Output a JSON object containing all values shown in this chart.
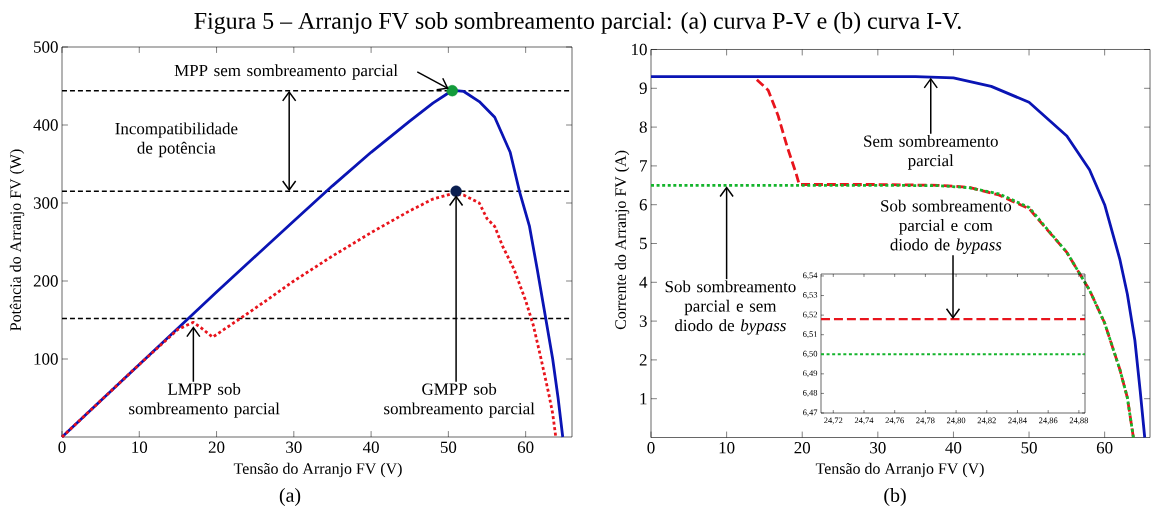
{
  "chart_data": [
    {
      "type": "line",
      "title": "Figura 5 – Arranjo FV sob sombreamento parcial: (a) curva P-V e (b) curva I-V.",
      "xlabel": "Tensão do Arranjo FV (V)",
      "ylabel": "Potência do Arranjo FV (W)",
      "xlim": [
        0,
        66
      ],
      "ylim": [
        0,
        500
      ],
      "xticks": [
        0,
        10,
        20,
        30,
        40,
        50,
        60
      ],
      "yticks": [
        100,
        200,
        300,
        400,
        500
      ],
      "series": [
        {
          "color": "#0a14b4",
          "line_style": "solid",
          "x": [
            0,
            10,
            20,
            30,
            35,
            40,
            45,
            48,
            50,
            51,
            52,
            54,
            56,
            58,
            59.2,
            60.5,
            61.5,
            62.6,
            63.5,
            64.2,
            64.8
          ],
          "values": [
            0,
            93,
            186,
            277,
            322,
            365,
            405,
            428,
            441,
            444,
            443,
            430,
            410,
            365,
            315,
            270,
            215,
            152,
            100,
            50,
            0
          ]
        },
        {
          "color": "#e8141c",
          "line_style": "dotted",
          "x": [
            0,
            10,
            15,
            17,
            18,
            19.5,
            25,
            30,
            35,
            40,
            45,
            48,
            50.5,
            52,
            54,
            55,
            56,
            57,
            58.5,
            60,
            61,
            62,
            63,
            63.5,
            63.9
          ],
          "values": [
            0,
            93,
            138,
            147,
            140,
            128,
            165,
            200,
            232,
            262,
            290,
            305,
            312,
            310,
            300,
            280,
            270,
            245,
            215,
            175,
            143,
            100,
            55,
            30,
            0
          ]
        },
        {
          "type": "scatter",
          "color": "#139b3b",
          "marker": "circle",
          "x": [
            50.5
          ],
          "values": [
            444
          ]
        },
        {
          "type": "scatter",
          "color": "#0a1e50",
          "marker": "circle",
          "x": [
            51
          ],
          "values": [
            315
          ]
        }
      ],
      "ref_lines": [
        {
          "axis": "y",
          "value": 444,
          "color": "#000000",
          "line_style": "dashed"
        },
        {
          "axis": "y",
          "value": 315,
          "color": "#000000",
          "line_style": "dashed"
        },
        {
          "axis": "y",
          "value": 152,
          "color": "#000000",
          "line_style": "dashed"
        }
      ],
      "annotations": [
        {
          "text": "MPP sem sombreamento parcial",
          "x": 50.5,
          "y": 444
        },
        "Incompatibilidade de potência",
        {
          "text": "LMPP sob sombreamento parcial",
          "x": 17,
          "y": 147
        },
        {
          "text": "GMPP sob sombreamento parcial",
          "x": 51,
          "y": 315
        },
        "(a)"
      ]
    },
    {
      "type": "line",
      "xlabel": "Tensão do Arranjo FV (V)",
      "ylabel": "Corrente do Arranjo FV (A)",
      "xlim": [
        0,
        66
      ],
      "ylim": [
        0,
        10
      ],
      "xticks": [
        0,
        10,
        20,
        30,
        40,
        50,
        60
      ],
      "yticks": [
        1,
        2,
        3,
        4,
        5,
        6,
        7,
        8,
        9,
        10
      ],
      "series": [
        {
          "color": "#e8141c",
          "line_style": "dashed",
          "x": [
            14,
            15.5,
            16.8,
            18,
            19.2,
            19.6,
            30,
            38,
            42,
            46,
            50,
            55,
            58,
            60,
            62,
            63,
            63.8
          ],
          "values": [
            9.22,
            8.95,
            8.3,
            7.5,
            6.8,
            6.52,
            6.52,
            6.5,
            6.45,
            6.25,
            5.9,
            4.77,
            3.8,
            2.95,
            1.76,
            1.03,
            0
          ]
        },
        {
          "color": "#14b42c",
          "line_style": "dotted",
          "x": [
            0,
            30,
            38,
            42,
            46,
            50,
            55,
            58,
            60,
            62,
            63,
            63.8
          ],
          "values": [
            6.5,
            6.5,
            6.49,
            6.44,
            6.28,
            5.93,
            4.77,
            3.8,
            2.95,
            1.76,
            1.03,
            0
          ]
        },
        {
          "color": "#0a14b4",
          "line_style": "solid",
          "x": [
            0,
            35,
            40,
            45,
            50,
            55,
            58,
            60,
            62,
            63,
            64,
            64.7,
            65.3
          ],
          "values": [
            9.3,
            9.3,
            9.27,
            9.05,
            8.64,
            7.77,
            6.9,
            6.0,
            4.6,
            3.7,
            2.5,
            1.2,
            0
          ]
        }
      ],
      "annotations": [
        {
          "text": "Sem sombreamento parcial",
          "x": 37,
          "y": 9.3
        },
        {
          "text": "Sob sombreamento parcial e sem diodo de *bypass*",
          "x": 10,
          "y": 6.5
        },
        "Sob sombreamento parcial e com diodo de *bypass*",
        "(b)"
      ]
    },
    {
      "type": "line",
      "xlim": [
        24.712,
        24.884
      ],
      "ylim": [
        6.47,
        6.541
      ],
      "xticks": [
        {
          "value": 24.72,
          "label": "24,72"
        },
        {
          "value": 24.74,
          "label": "24,74"
        },
        {
          "value": 24.76,
          "label": "24,76"
        },
        {
          "value": 24.78,
          "label": "24,78"
        },
        {
          "value": 24.8,
          "label": "24,80"
        },
        {
          "value": 24.82,
          "label": "24,82"
        },
        {
          "value": 24.84,
          "label": "24,84"
        },
        {
          "value": 24.86,
          "label": "24,86"
        },
        {
          "value": 24.88,
          "label": "24,88"
        }
      ],
      "yticks": [
        {
          "value": 6.47,
          "label": "6,47"
        },
        {
          "value": 6.48,
          "label": "6,48"
        },
        {
          "value": 6.49,
          "label": "6,49"
        },
        {
          "value": 6.5,
          "label": "6,50"
        },
        {
          "value": 6.51,
          "label": "6,51"
        },
        {
          "value": 6.52,
          "label": "6,52"
        },
        {
          "value": 6.53,
          "label": "6,53"
        },
        {
          "value": 6.54,
          "label": "6,54"
        }
      ],
      "series": [
        {
          "color": "#e8141c",
          "line_style": "dashed",
          "x": [
            24.712,
            24.884
          ],
          "values": [
            6.518,
            6.518
          ]
        },
        {
          "color": "#14b42c",
          "line_style": "dotted",
          "x": [
            24.712,
            24.884
          ],
          "values": [
            6.5,
            6.5
          ]
        }
      ]
    }
  ]
}
